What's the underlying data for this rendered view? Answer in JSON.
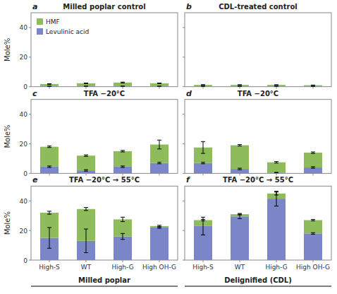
{
  "chart_data": [
    {
      "type": "bar",
      "stacked": true,
      "title": "Milled poplar control",
      "annotations": [
        "a"
      ],
      "y_label": "Mole%",
      "categories": [
        "High-S",
        "WT",
        "High-G",
        "High OH-G"
      ],
      "series": [
        {
          "name": "Levulinic acid",
          "color": "#7b86c8",
          "values": [
            0.3,
            0.3,
            0.3,
            0.3
          ],
          "errors": [
            0.1,
            0.1,
            0.1,
            0.1
          ]
        },
        {
          "name": "HMF",
          "color": "#8fbc5a",
          "values": [
            1.5,
            2.0,
            2.5,
            2.0
          ],
          "errors": [
            0.2,
            0.2,
            0.3,
            0.2
          ]
        }
      ],
      "ylim": [
        0,
        50
      ],
      "yticks": [
        0,
        20,
        40
      ],
      "tick_labels": "y",
      "legend": "upper left"
    },
    {
      "type": "bar",
      "stacked": true,
      "title": "CDL-treated control",
      "annotations": [
        "b"
      ],
      "categories": [
        "High-S",
        "WT",
        "High-G",
        "High OH-G"
      ],
      "series": [
        {
          "name": "Levulinic acid",
          "color": "#7b86c8",
          "values": [
            0.2,
            0.2,
            0.2,
            0.2
          ],
          "errors": [
            0.05,
            0.05,
            0.05,
            0.05
          ]
        },
        {
          "name": "HMF",
          "color": "#8fbc5a",
          "values": [
            1.0,
            1.0,
            1.0,
            0.8
          ],
          "errors": [
            0.15,
            0.1,
            0.1,
            0.1
          ]
        }
      ],
      "ylim": [
        0,
        50
      ],
      "yticks": [
        0,
        20,
        40
      ],
      "tick_labels": false
    },
    {
      "type": "bar",
      "stacked": true,
      "title": "TFA −20°C",
      "annotations": [
        "c"
      ],
      "y_label": "Mole%",
      "categories": [
        "High-S",
        "WT",
        "High-G",
        "High OH-G"
      ],
      "series": [
        {
          "name": "Levulinic acid",
          "color": "#7b86c8",
          "values": [
            4.5,
            2.0,
            4.5,
            7.0
          ],
          "errors": [
            0.5,
            0.5,
            0.5,
            0.5
          ]
        },
        {
          "name": "HMF",
          "color": "#8fbc5a",
          "values": [
            13.5,
            10.0,
            10.5,
            12.5
          ],
          "errors": [
            0.5,
            0.5,
            0.5,
            3.0
          ]
        }
      ],
      "ylim": [
        0,
        50
      ],
      "yticks": [
        0,
        20,
        40
      ],
      "tick_labels": "y"
    },
    {
      "type": "bar",
      "stacked": true,
      "title": "TFA −20°C",
      "annotations": [
        "d"
      ],
      "categories": [
        "High-S",
        "WT",
        "High-G",
        "High OH-G"
      ],
      "series": [
        {
          "name": "Levulinic acid",
          "color": "#7b86c8",
          "values": [
            7.0,
            3.0,
            0.5,
            4.0
          ],
          "errors": [
            0.5,
            0.5,
            0.2,
            0.5
          ]
        },
        {
          "name": "HMF",
          "color": "#8fbc5a",
          "values": [
            10.5,
            16.0,
            7.0,
            10.0
          ],
          "errors": [
            4.0,
            0.5,
            0.5,
            0.5
          ]
        }
      ],
      "ylim": [
        0,
        50
      ],
      "yticks": [
        0,
        20,
        40
      ],
      "tick_labels": false
    },
    {
      "type": "bar",
      "stacked": true,
      "title": "TFA −20°C → 55°C",
      "annotations": [
        "e"
      ],
      "y_label": "Mole%",
      "x_label": "Milled poplar",
      "categories": [
        "High-S",
        "WT",
        "High-G",
        "High OH-G"
      ],
      "series": [
        {
          "name": "Levulinic acid",
          "color": "#7b86c8",
          "values": [
            15.0,
            13.0,
            16.0,
            22.0
          ],
          "errors": [
            7.0,
            8.0,
            2.0,
            0.5
          ]
        },
        {
          "name": "HMF",
          "color": "#8fbc5a",
          "values": [
            17.0,
            21.5,
            11.5,
            1.0
          ],
          "errors": [
            1.0,
            1.0,
            1.5,
            0.5
          ]
        }
      ],
      "ylim": [
        0,
        50
      ],
      "yticks": [
        0,
        20,
        40
      ]
    },
    {
      "type": "bar",
      "stacked": true,
      "title": "TFA −20°C → 55°C",
      "annotations": [
        "f"
      ],
      "x_label": "Delignified (CDL)",
      "categories": [
        "High-S",
        "WT",
        "High-G",
        "High OH-G"
      ],
      "series": [
        {
          "name": "Levulinic acid",
          "color": "#7b86c8",
          "values": [
            23.0,
            29.5,
            41.5,
            18.0
          ],
          "errors": [
            6.0,
            1.5,
            5.0,
            0.5
          ]
        },
        {
          "name": "HMF",
          "color": "#8fbc5a",
          "values": [
            4.0,
            1.5,
            3.5,
            9.0
          ],
          "errors": [
            0.5,
            0.5,
            1.0,
            0.5
          ]
        }
      ],
      "ylim": [
        0,
        50
      ],
      "yticks": [
        0,
        20,
        40
      ],
      "tick_labels": "x"
    }
  ]
}
